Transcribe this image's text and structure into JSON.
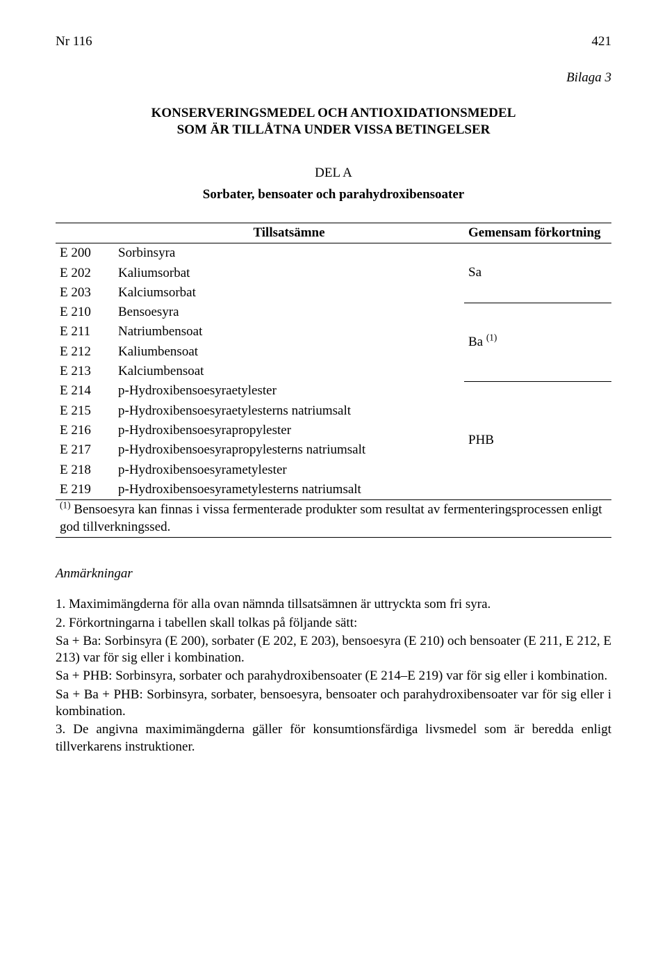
{
  "header": {
    "docNumber": "Nr 116",
    "pageNumber": "421"
  },
  "bilaga": "Bilaga 3",
  "mainTitle": {
    "line1": "KONSERVERINGSMEDEL OCH ANTIOXIDATIONSMEDEL",
    "line2": "SOM ÄR TILLÅTNA UNDER VISSA BETINGELSER"
  },
  "delA": "DEL A",
  "subtitle": "Sorbater, bensoater och parahydroxibensoater",
  "table": {
    "headers": {
      "tillsatsamne": "Tillsatsämne",
      "gemensam": "Gemensam förkortning"
    },
    "rows": [
      {
        "code": "E 200",
        "name": "Sorbinsyra"
      },
      {
        "code": "E 202",
        "name": "Kaliumsorbat"
      },
      {
        "code": "E 203",
        "name": "Kalciumsorbat"
      },
      {
        "code": "E 210",
        "name": "Bensoesyra"
      },
      {
        "code": "E 211",
        "name": "Natriumbensoat"
      },
      {
        "code": "E 212",
        "name": "Kaliumbensoat"
      },
      {
        "code": "E 213",
        "name": "Kalciumbensoat"
      },
      {
        "code": "E 214",
        "name": "p-Hydroxibensoesyraetylester"
      },
      {
        "code": "E 215",
        "name": "p-Hydroxibensoesyraetylesterns natriumsalt"
      },
      {
        "code": "E 216",
        "name": "p-Hydroxibensoesyrapropylester"
      },
      {
        "code": "E 217",
        "name": "p-Hydroxibensoesyrapropylesterns natriumsalt"
      },
      {
        "code": "E 218",
        "name": "p-Hydroxibensoesyrametylester"
      },
      {
        "code": "E 219",
        "name": "p-Hydroxibensoesyrametylesterns natriumsalt"
      }
    ],
    "groups": [
      {
        "abbr": "Sa",
        "start": 0,
        "end": 2
      },
      {
        "abbrHtml": "Ba <sup>(1)</sup>",
        "abbrPlain": "Ba (1)",
        "start": 3,
        "end": 6
      },
      {
        "abbr": "PHB",
        "start": 7,
        "end": 12
      }
    ],
    "footnote": {
      "marker": "(1)",
      "text": " Bensoesyra kan finnas i vissa fermenterade produkter som resultat av fermenteringsprocessen enligt god tillverkningssed."
    }
  },
  "anmHeading": "Anmärkningar",
  "notes": {
    "p1": "1. Maximimängderna för alla ovan nämnda tillsatsämnen är uttryckta som fri syra.",
    "p2": "2. Förkortningarna i tabellen skall tolkas på följande sätt:",
    "p3": "Sa + Ba: Sorbinsyra (E 200), sorbater (E 202, E 203), bensoesyra (E 210) och bensoater (E 211, E 212, E 213) var för sig eller i kombination.",
    "p4": "Sa + PHB: Sorbinsyra, sorbater och parahydroxibensoater (E 214–E 219) var för sig eller i kombination.",
    "p5": "Sa + Ba + PHB: Sorbinsyra, sorbater, bensoesyra, bensoater och parahydroxibensoater var för sig eller i kombination.",
    "p6": "3. De angivna maximimängderna gäller för konsumtionsfärdiga livsmedel som är beredda enligt tillverkarens instruktioner."
  }
}
